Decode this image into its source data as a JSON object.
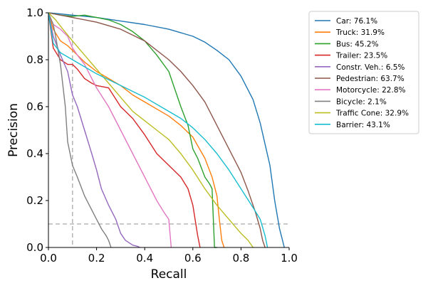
{
  "chart_data": {
    "type": "line",
    "xlabel": "Recall",
    "ylabel": "Precision",
    "xlim": [
      0.0,
      1.0
    ],
    "ylim": [
      0.0,
      1.0
    ],
    "xticks": [
      "0.0",
      "0.2",
      "0.4",
      "0.6",
      "0.8",
      "1.0"
    ],
    "yticks": [
      "0.0",
      "0.2",
      "0.4",
      "0.6",
      "0.8",
      "1.0"
    ],
    "grid": false,
    "legend_position": "right",
    "reference_lines": [
      {
        "orientation": "vertical",
        "x": 0.1,
        "style": "dashed",
        "color": "#aaaaaa"
      },
      {
        "orientation": "horizontal",
        "y": 0.1,
        "style": "dashed",
        "color": "#aaaaaa"
      }
    ],
    "series": [
      {
        "name": "Car: 76.1%",
        "color": "#1f77b4",
        "x": [
          0.0,
          0.05,
          0.1,
          0.2,
          0.3,
          0.4,
          0.5,
          0.6,
          0.65,
          0.7,
          0.75,
          0.8,
          0.85,
          0.88,
          0.9,
          0.92,
          0.94,
          0.96,
          0.97,
          0.98
        ],
        "y": [
          1.0,
          0.995,
          0.99,
          0.98,
          0.965,
          0.95,
          0.93,
          0.9,
          0.875,
          0.84,
          0.8,
          0.73,
          0.63,
          0.53,
          0.44,
          0.35,
          0.2,
          0.08,
          0.04,
          0.0
        ]
      },
      {
        "name": "Truck: 31.9%",
        "color": "#ff7f0e",
        "x": [
          0.0,
          0.02,
          0.05,
          0.08,
          0.1,
          0.15,
          0.2,
          0.25,
          0.3,
          0.35,
          0.4,
          0.45,
          0.5,
          0.55,
          0.6,
          0.65,
          0.68,
          0.7,
          0.71,
          0.72,
          0.73
        ],
        "y": [
          1.0,
          0.93,
          0.88,
          0.86,
          0.84,
          0.79,
          0.75,
          0.72,
          0.69,
          0.65,
          0.62,
          0.59,
          0.56,
          0.52,
          0.47,
          0.38,
          0.3,
          0.22,
          0.12,
          0.03,
          0.0
        ]
      },
      {
        "name": "Bus: 45.2%",
        "color": "#2ca02c",
        "x": [
          0.0,
          0.05,
          0.1,
          0.15,
          0.2,
          0.25,
          0.3,
          0.35,
          0.4,
          0.45,
          0.5,
          0.55,
          0.58,
          0.6,
          0.62,
          0.65,
          0.67,
          0.68,
          0.69,
          0.7
        ],
        "y": [
          1.0,
          0.99,
          0.985,
          0.99,
          0.98,
          0.97,
          0.95,
          0.92,
          0.88,
          0.82,
          0.75,
          0.6,
          0.52,
          0.42,
          0.38,
          0.3,
          0.27,
          0.25,
          0.0,
          0.0
        ]
      },
      {
        "name": "Trailer: 23.5%",
        "color": "#d62728",
        "x": [
          0.0,
          0.02,
          0.05,
          0.08,
          0.1,
          0.12,
          0.15,
          0.18,
          0.2,
          0.25,
          0.3,
          0.35,
          0.4,
          0.45,
          0.5,
          0.55,
          0.58,
          0.6,
          0.62,
          0.63
        ],
        "y": [
          1.0,
          0.85,
          0.8,
          0.78,
          0.78,
          0.76,
          0.72,
          0.7,
          0.69,
          0.68,
          0.6,
          0.55,
          0.48,
          0.4,
          0.35,
          0.3,
          0.25,
          0.18,
          0.05,
          0.0
        ]
      },
      {
        "name": "Constr. Veh.: 6.5%",
        "color": "#9467bd",
        "x": [
          0.0,
          0.02,
          0.05,
          0.08,
          0.1,
          0.12,
          0.15,
          0.18,
          0.2,
          0.22,
          0.25,
          0.28,
          0.3,
          0.32,
          0.35,
          0.37,
          0.38
        ],
        "y": [
          1.0,
          0.9,
          0.82,
          0.75,
          0.65,
          0.6,
          0.5,
          0.4,
          0.33,
          0.25,
          0.18,
          0.12,
          0.06,
          0.03,
          0.01,
          0.005,
          0.0
        ]
      },
      {
        "name": "Pedestrian: 63.7%",
        "color": "#8c564b",
        "x": [
          0.0,
          0.1,
          0.2,
          0.3,
          0.4,
          0.5,
          0.55,
          0.6,
          0.65,
          0.7,
          0.75,
          0.8,
          0.83,
          0.86,
          0.88,
          0.89,
          0.9
        ],
        "y": [
          1.0,
          0.98,
          0.96,
          0.93,
          0.88,
          0.8,
          0.75,
          0.69,
          0.62,
          0.52,
          0.42,
          0.32,
          0.24,
          0.15,
          0.08,
          0.03,
          0.0
        ]
      },
      {
        "name": "Motorcycle: 22.8%",
        "color": "#e377c2",
        "x": [
          0.0,
          0.02,
          0.05,
          0.08,
          0.1,
          0.12,
          0.15,
          0.2,
          0.25,
          0.3,
          0.35,
          0.4,
          0.45,
          0.48,
          0.5,
          0.505,
          0.51
        ],
        "y": [
          1.0,
          0.95,
          0.93,
          0.9,
          0.85,
          0.82,
          0.78,
          0.68,
          0.6,
          0.5,
          0.4,
          0.3,
          0.2,
          0.15,
          0.12,
          0.06,
          0.0
        ]
      },
      {
        "name": "Bicycle: 2.1%",
        "color": "#7f7f7f",
        "x": [
          0.0,
          0.02,
          0.03,
          0.05,
          0.07,
          0.08,
          0.1,
          0.12,
          0.15,
          0.18,
          0.2,
          0.22,
          0.24,
          0.25,
          0.26
        ],
        "y": [
          1.0,
          0.95,
          0.9,
          0.78,
          0.6,
          0.45,
          0.35,
          0.3,
          0.22,
          0.16,
          0.12,
          0.08,
          0.05,
          0.03,
          0.0
        ]
      },
      {
        "name": "Traffic Cone: 32.9%",
        "color": "#bcbd22",
        "x": [
          0.0,
          0.03,
          0.06,
          0.1,
          0.15,
          0.2,
          0.25,
          0.3,
          0.35,
          0.4,
          0.45,
          0.5,
          0.55,
          0.6,
          0.65,
          0.7,
          0.75,
          0.8,
          0.83,
          0.85
        ],
        "y": [
          1.0,
          0.97,
          0.93,
          0.88,
          0.82,
          0.76,
          0.7,
          0.64,
          0.58,
          0.54,
          0.5,
          0.46,
          0.4,
          0.33,
          0.25,
          0.18,
          0.12,
          0.06,
          0.03,
          0.0
        ]
      },
      {
        "name": "Barrier: 43.1%",
        "color": "#17becf",
        "x": [
          0.0,
          0.02,
          0.05,
          0.1,
          0.2,
          0.3,
          0.4,
          0.5,
          0.55,
          0.6,
          0.65,
          0.7,
          0.75,
          0.8,
          0.85,
          0.88,
          0.9,
          0.91
        ],
        "y": [
          1.0,
          0.87,
          0.83,
          0.8,
          0.74,
          0.69,
          0.64,
          0.58,
          0.55,
          0.51,
          0.46,
          0.4,
          0.33,
          0.25,
          0.17,
          0.12,
          0.05,
          0.0
        ]
      }
    ]
  }
}
